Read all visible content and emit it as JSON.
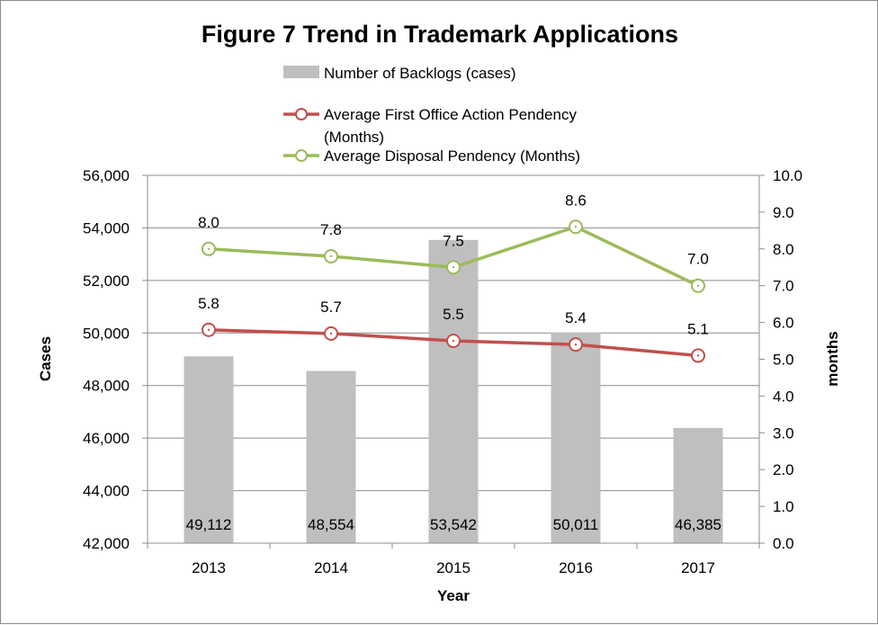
{
  "chart_data": {
    "type": "bar",
    "title": "Figure 7 Trend in Trademark Applications",
    "categories": [
      "2013",
      "2014",
      "2015",
      "2016",
      "2017"
    ],
    "xlabel": "Year",
    "ylabel": "Cases",
    "ylabel_right": "months",
    "ylim": [
      42000,
      56000
    ],
    "ylim_right": [
      0.0,
      10.0
    ],
    "yticks": [
      "42,000",
      "44,000",
      "46,000",
      "48,000",
      "50,000",
      "52,000",
      "54,000",
      "56,000"
    ],
    "yticks_right": [
      "0.0",
      "1.0",
      "2.0",
      "3.0",
      "4.0",
      "5.0",
      "6.0",
      "7.0",
      "8.0",
      "9.0",
      "10.0"
    ],
    "grid": true,
    "legend_position": "top",
    "series": [
      {
        "name": "Number of Backlogs (cases)",
        "type": "bar",
        "axis": "left",
        "color": "#bfbfbf",
        "values": [
          49112,
          48554,
          53542,
          50011,
          46385
        ],
        "labels": [
          "49,112",
          "48,554",
          "53,542",
          "50,011",
          "46,385"
        ]
      },
      {
        "name": "Average First Office Action Pendency (Months)",
        "name_lines": [
          "Average First Office Action Pendency",
          "(Months)"
        ],
        "type": "line",
        "axis": "right",
        "color": "#c0504d",
        "values": [
          5.8,
          5.7,
          5.5,
          5.4,
          5.1
        ],
        "labels": [
          "5.8",
          "5.7",
          "5.5",
          "5.4",
          "5.1"
        ]
      },
      {
        "name": "Average Disposal Pendency (Months)",
        "name_lines": [
          "Average Disposal Pendency (Months)"
        ],
        "type": "line",
        "axis": "right",
        "color": "#9bbb59",
        "values": [
          8.0,
          7.8,
          7.5,
          8.6,
          7.0
        ],
        "labels": [
          "8.0",
          "7.8",
          "7.5",
          "8.6",
          "7.0"
        ]
      }
    ]
  }
}
